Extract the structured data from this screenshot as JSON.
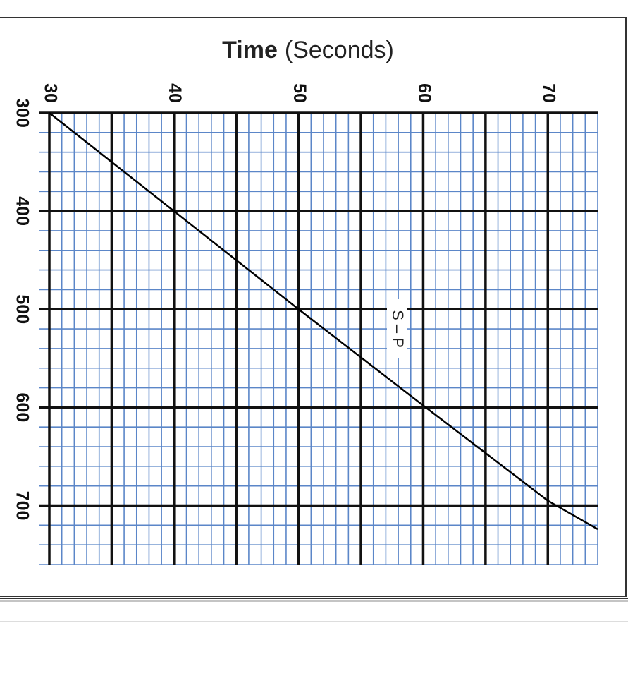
{
  "chart_data": {
    "type": "line",
    "xlabel": {
      "main": "Time",
      "unit": "(Seconds)"
    },
    "annotation": "S – P",
    "x": [
      30,
      40,
      50,
      60,
      70,
      74
    ],
    "series": [
      {
        "name": "S – P",
        "color": "#000000",
        "values": [
          300,
          400,
          500,
          598,
          695,
          724
        ]
      }
    ],
    "xlim": [
      30,
      74
    ],
    "ylim": [
      300,
      760
    ],
    "xticks": [
      30,
      40,
      50,
      60,
      70
    ],
    "yticks": [
      300,
      400,
      500,
      600,
      700
    ],
    "x_major_grid": [
      30,
      35,
      40,
      45,
      50,
      55,
      60,
      65,
      70
    ],
    "y_major_grid": [
      300,
      400,
      500,
      600,
      700
    ],
    "x_minor_grid": [
      31,
      32,
      33,
      34,
      36,
      37,
      38,
      39,
      41,
      42,
      43,
      44,
      46,
      47,
      48,
      49,
      51,
      52,
      53,
      54,
      56,
      57,
      58,
      59,
      61,
      62,
      63,
      64,
      66,
      67,
      68,
      69,
      71,
      72,
      73,
      74
    ],
    "y_minor_grid": [
      320,
      340,
      360,
      380,
      420,
      440,
      460,
      480,
      520,
      540,
      560,
      580,
      620,
      640,
      660,
      680,
      720,
      740,
      760
    ],
    "grid_color": "#5b86c8",
    "major_grid_color": "#111111",
    "y_inverted": true
  }
}
